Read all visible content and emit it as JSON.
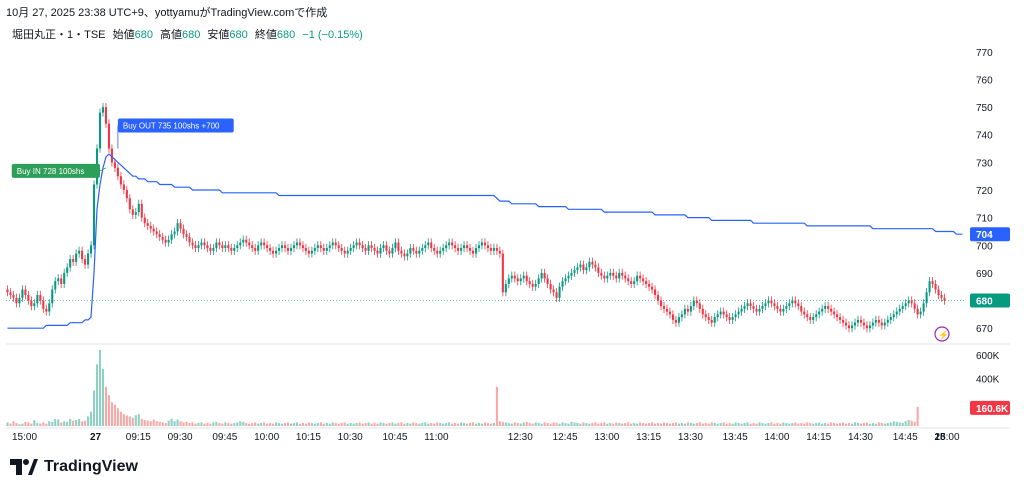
{
  "caption": "10月 27, 2025 23:38 UTC+9、yottyamuがTradingView.comで作成",
  "legend": {
    "symbol": "堀田丸正・1・TSE",
    "open_label": "始値",
    "open": "680",
    "high_label": "高値",
    "high": "680",
    "low_label": "安値",
    "low": "680",
    "close_label": "終値",
    "close": "680",
    "change": "−1 (−0.15%)"
  },
  "brand": "TradingView",
  "colors": {
    "up": "#089981",
    "down": "#f23645",
    "vwap": "#2962ff",
    "bg": "#ffffff",
    "grid": "#f0f3fa"
  },
  "chart_data": {
    "type": "candlestick",
    "price_axis": {
      "min": 665,
      "max": 775,
      "ticks": [
        670,
        680,
        690,
        700,
        710,
        720,
        730,
        740,
        750,
        760,
        770
      ]
    },
    "volume_axis": {
      "ticks_labels": [
        "400K",
        "600K"
      ],
      "ticks": [
        400000,
        600000
      ],
      "max": 640000
    },
    "time_labels": [
      "15:00",
      "27",
      "09:15",
      "09:30",
      "09:45",
      "10:00",
      "10:15",
      "10:30",
      "10:45",
      "11:00",
      "12:30",
      "12:45",
      "13:00",
      "13:15",
      "13:30",
      "13:45",
      "14:00",
      "14:15",
      "14:30",
      "14:45",
      "15:00",
      "28"
    ],
    "price_label_last": "680",
    "price_label_vwap": "704",
    "volume_label_last": "160.6K",
    "trades": [
      {
        "text": "Buy IN 728 100shs",
        "price": 728,
        "bar": 33
      },
      {
        "text": "Buy OUT 735 100shs +700",
        "price": 735,
        "bar": 37
      }
    ],
    "closes": [
      683,
      682,
      681,
      679,
      681,
      684,
      682,
      680,
      678,
      679,
      682,
      680,
      677,
      676,
      679,
      684,
      687,
      688,
      686,
      690,
      692,
      695,
      694,
      697,
      698,
      695,
      693,
      697,
      700,
      722,
      735,
      748,
      750,
      744,
      735,
      730,
      728,
      725,
      722,
      720,
      717,
      713,
      711,
      712,
      715,
      710,
      708,
      707,
      706,
      705,
      704,
      703,
      702,
      701,
      702,
      704,
      705,
      708,
      706,
      704,
      703,
      701,
      700,
      699,
      700,
      701,
      700,
      699,
      698,
      699,
      701,
      700,
      699,
      700,
      699,
      698,
      699,
      700,
      701,
      702,
      701,
      700,
      699,
      698,
      700,
      701,
      700,
      699,
      698,
      697,
      698,
      699,
      700,
      699,
      698,
      699,
      700,
      701,
      700,
      699,
      698,
      697,
      698,
      699,
      700,
      699,
      698,
      699,
      700,
      701,
      700,
      699,
      698,
      697,
      698,
      699,
      700,
      701,
      700,
      699,
      698,
      700,
      699,
      698,
      697,
      699,
      700,
      698,
      697,
      699,
      701,
      698,
      697,
      696,
      697,
      699,
      698,
      697,
      698,
      699,
      700,
      701,
      699,
      698,
      697,
      698,
      699,
      700,
      701,
      700,
      699,
      698,
      699,
      700,
      699,
      698,
      697,
      699,
      700,
      701,
      700,
      699,
      698,
      699,
      698,
      697,
      683,
      686,
      688,
      689,
      688,
      687,
      688,
      689,
      687,
      686,
      685,
      686,
      688,
      690,
      688,
      686,
      684,
      683,
      681,
      685,
      687,
      688,
      689,
      690,
      691,
      692,
      693,
      691,
      692,
      694,
      693,
      692,
      690,
      689,
      688,
      689,
      690,
      689,
      688,
      690,
      689,
      688,
      687,
      686,
      687,
      689,
      688,
      687,
      686,
      685,
      684,
      682,
      680,
      678,
      677,
      676,
      675,
      673,
      672,
      674,
      675,
      677,
      676,
      678,
      680,
      679,
      677,
      675,
      674,
      673,
      672,
      674,
      675,
      676,
      675,
      674,
      673,
      674,
      675,
      676,
      677,
      678,
      679,
      678,
      677,
      676,
      677,
      678,
      679,
      680,
      679,
      678,
      677,
      676,
      677,
      678,
      679,
      680,
      679,
      678,
      676,
      675,
      674,
      673,
      674,
      675,
      676,
      677,
      678,
      677,
      676,
      675,
      674,
      673,
      672,
      671,
      670,
      671,
      672,
      673,
      672,
      671,
      670,
      671,
      672,
      673,
      672,
      671,
      672,
      673,
      674,
      675,
      676,
      677,
      678,
      679,
      680,
      679,
      677,
      675,
      676,
      679,
      683,
      687,
      686,
      684,
      682,
      681,
      680
    ],
    "vwap": [
      670,
      670,
      670,
      670,
      670,
      670,
      670,
      670,
      670,
      670,
      670,
      670,
      670,
      671,
      671,
      671,
      671,
      671,
      671,
      671,
      671,
      672,
      672,
      672,
      672,
      672,
      673,
      673,
      674,
      690,
      713,
      722,
      728,
      732,
      733,
      732,
      731,
      730,
      729,
      728,
      727,
      726,
      725,
      725,
      724,
      724,
      724,
      723,
      723,
      723,
      723,
      722,
      722,
      722,
      722,
      722,
      721,
      721,
      721,
      721,
      721,
      721,
      720,
      720,
      720,
      720,
      720,
      720,
      720,
      720,
      720,
      720,
      719,
      719,
      719,
      719,
      719,
      719,
      719,
      719,
      719,
      719,
      719,
      719,
      719,
      719,
      719,
      719,
      719,
      719,
      719,
      718,
      718,
      718,
      718,
      718,
      718,
      718,
      718,
      718,
      718,
      718,
      718,
      718,
      718,
      718,
      718,
      718,
      718,
      718,
      718,
      718,
      718,
      718,
      718,
      718,
      718,
      718,
      718,
      718,
      718,
      718,
      718,
      718,
      718,
      718,
      718,
      718,
      718,
      718,
      718,
      718,
      718,
      718,
      718,
      718,
      718,
      718,
      718,
      718,
      718,
      718,
      718,
      718,
      718,
      718,
      718,
      718,
      718,
      718,
      718,
      718,
      718,
      718,
      718,
      718,
      718,
      718,
      718,
      718,
      718,
      718,
      718,
      718,
      717,
      716,
      716,
      716,
      716,
      715,
      715,
      715,
      715,
      715,
      715,
      715,
      715,
      715,
      714,
      714,
      714,
      714,
      714,
      714,
      714,
      714,
      714,
      714,
      713,
      713,
      713,
      713,
      713,
      713,
      713,
      713,
      713,
      713,
      713,
      713,
      712,
      712,
      712,
      712,
      712,
      712,
      712,
      712,
      712,
      712,
      712,
      712,
      712,
      712,
      712,
      712,
      712,
      711,
      711,
      711,
      711,
      711,
      711,
      711,
      711,
      711,
      711,
      711,
      710,
      710,
      710,
      710,
      710,
      710,
      710,
      710,
      709,
      709,
      709,
      709,
      709,
      709,
      709,
      709,
      709,
      709,
      709,
      709,
      709,
      709,
      708,
      708,
      708,
      708,
      708,
      708,
      708,
      708,
      708,
      708,
      708,
      708,
      708,
      708,
      708,
      708,
      708,
      708,
      707,
      707,
      707,
      707,
      707,
      707,
      707,
      707,
      707,
      707,
      707,
      707,
      707,
      707,
      707,
      707,
      707,
      707,
      707,
      707,
      707,
      707,
      706,
      706,
      706,
      706,
      706,
      706,
      706,
      706,
      706,
      706,
      706,
      706,
      706,
      706,
      706,
      706,
      706,
      706,
      706,
      706,
      706,
      705,
      705,
      705,
      705,
      705,
      705,
      705,
      704,
      704,
      704
    ],
    "volumes": [
      30000,
      20000,
      40000,
      25000,
      15000,
      20000,
      35000,
      30000,
      20000,
      50000,
      25000,
      20000,
      30000,
      20000,
      40000,
      35000,
      60000,
      55000,
      30000,
      40000,
      35000,
      60000,
      45000,
      50000,
      60000,
      40000,
      45000,
      80000,
      120000,
      300000,
      520000,
      640000,
      480000,
      330000,
      260000,
      200000,
      180000,
      150000,
      120000,
      100000,
      90000,
      80000,
      70000,
      90000,
      100000,
      60000,
      50000,
      45000,
      40000,
      55000,
      40000,
      35000,
      30000,
      25000,
      45000,
      60000,
      40000,
      55000,
      40000,
      30000,
      35000,
      25000,
      30000,
      20000,
      25000,
      30000,
      20000,
      25000,
      20000,
      30000,
      35000,
      25000,
      20000,
      30000,
      25000,
      20000,
      25000,
      30000,
      40000,
      35000,
      25000,
      20000,
      25000,
      30000,
      20000,
      25000,
      30000,
      20000,
      25000,
      20000,
      30000,
      25000,
      20000,
      25000,
      30000,
      20000,
      25000,
      30000,
      20000,
      25000,
      20000,
      30000,
      25000,
      20000,
      25000,
      30000,
      20000,
      25000,
      20000,
      30000,
      25000,
      20000,
      25000,
      30000,
      20000,
      25000,
      20000,
      25000,
      30000,
      20000,
      25000,
      30000,
      20000,
      25000,
      20000,
      30000,
      25000,
      20000,
      25000,
      30000,
      20000,
      25000,
      30000,
      20000,
      25000,
      20000,
      30000,
      25000,
      20000,
      25000,
      30000,
      20000,
      25000,
      20000,
      30000,
      25000,
      20000,
      25000,
      30000,
      20000,
      25000,
      20000,
      30000,
      25000,
      20000,
      25000,
      30000,
      20000,
      25000,
      20000,
      30000,
      25000,
      20000,
      25000,
      330000,
      40000,
      35000,
      30000,
      25000,
      20000,
      30000,
      25000,
      20000,
      30000,
      35000,
      25000,
      20000,
      30000,
      25000,
      20000,
      30000,
      25000,
      20000,
      30000,
      25000,
      20000,
      30000,
      25000,
      20000,
      35000,
      30000,
      25000,
      20000,
      30000,
      25000,
      20000,
      25000,
      30000,
      20000,
      25000,
      30000,
      20000,
      25000,
      20000,
      30000,
      25000,
      20000,
      25000,
      30000,
      20000,
      25000,
      20000,
      30000,
      25000,
      20000,
      25000,
      30000,
      20000,
      25000,
      20000,
      30000,
      25000,
      20000,
      25000,
      30000,
      20000,
      25000,
      20000,
      30000,
      25000,
      20000,
      25000,
      30000,
      20000,
      25000,
      20000,
      30000,
      25000,
      20000,
      25000,
      30000,
      20000,
      25000,
      20000,
      30000,
      25000,
      20000,
      25000,
      30000,
      20000,
      25000,
      20000,
      30000,
      25000,
      20000,
      25000,
      30000,
      20000,
      25000,
      20000,
      30000,
      25000,
      20000,
      25000,
      30000,
      20000,
      25000,
      20000,
      30000,
      25000,
      20000,
      25000,
      30000,
      20000,
      25000,
      20000,
      30000,
      25000,
      20000,
      25000,
      30000,
      20000,
      25000,
      20000,
      30000,
      25000,
      20000,
      25000,
      30000,
      20000,
      25000,
      20000,
      30000,
      25000,
      20000,
      25000,
      30000,
      40000,
      35000,
      30000,
      25000,
      40000,
      50000,
      45000,
      35000,
      160600
    ]
  }
}
